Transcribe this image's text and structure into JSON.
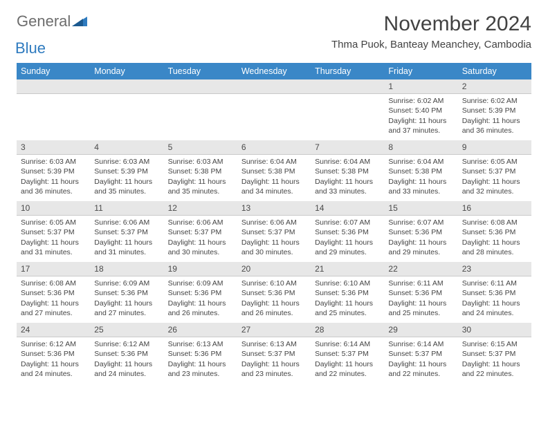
{
  "logo": {
    "text1": "General",
    "text2": "Blue",
    "icon_color": "#2f7bbf"
  },
  "header": {
    "month_title": "November 2024",
    "location": "Thma Puok, Banteay Meanchey, Cambodia"
  },
  "colors": {
    "weekday_bg": "#3a87c7",
    "weekday_fg": "#ffffff",
    "daynum_bg": "#e7e7e7",
    "text": "#444444",
    "title": "#424242"
  },
  "weekdays": [
    "Sunday",
    "Monday",
    "Tuesday",
    "Wednesday",
    "Thursday",
    "Friday",
    "Saturday"
  ],
  "weeks": [
    [
      null,
      null,
      null,
      null,
      null,
      {
        "n": "1",
        "sunrise": "Sunrise: 6:02 AM",
        "sunset": "Sunset: 5:40 PM",
        "daylight1": "Daylight: 11 hours",
        "daylight2": "and 37 minutes."
      },
      {
        "n": "2",
        "sunrise": "Sunrise: 6:02 AM",
        "sunset": "Sunset: 5:39 PM",
        "daylight1": "Daylight: 11 hours",
        "daylight2": "and 36 minutes."
      }
    ],
    [
      {
        "n": "3",
        "sunrise": "Sunrise: 6:03 AM",
        "sunset": "Sunset: 5:39 PM",
        "daylight1": "Daylight: 11 hours",
        "daylight2": "and 36 minutes."
      },
      {
        "n": "4",
        "sunrise": "Sunrise: 6:03 AM",
        "sunset": "Sunset: 5:39 PM",
        "daylight1": "Daylight: 11 hours",
        "daylight2": "and 35 minutes."
      },
      {
        "n": "5",
        "sunrise": "Sunrise: 6:03 AM",
        "sunset": "Sunset: 5:38 PM",
        "daylight1": "Daylight: 11 hours",
        "daylight2": "and 35 minutes."
      },
      {
        "n": "6",
        "sunrise": "Sunrise: 6:04 AM",
        "sunset": "Sunset: 5:38 PM",
        "daylight1": "Daylight: 11 hours",
        "daylight2": "and 34 minutes."
      },
      {
        "n": "7",
        "sunrise": "Sunrise: 6:04 AM",
        "sunset": "Sunset: 5:38 PM",
        "daylight1": "Daylight: 11 hours",
        "daylight2": "and 33 minutes."
      },
      {
        "n": "8",
        "sunrise": "Sunrise: 6:04 AM",
        "sunset": "Sunset: 5:38 PM",
        "daylight1": "Daylight: 11 hours",
        "daylight2": "and 33 minutes."
      },
      {
        "n": "9",
        "sunrise": "Sunrise: 6:05 AM",
        "sunset": "Sunset: 5:37 PM",
        "daylight1": "Daylight: 11 hours",
        "daylight2": "and 32 minutes."
      }
    ],
    [
      {
        "n": "10",
        "sunrise": "Sunrise: 6:05 AM",
        "sunset": "Sunset: 5:37 PM",
        "daylight1": "Daylight: 11 hours",
        "daylight2": "and 31 minutes."
      },
      {
        "n": "11",
        "sunrise": "Sunrise: 6:06 AM",
        "sunset": "Sunset: 5:37 PM",
        "daylight1": "Daylight: 11 hours",
        "daylight2": "and 31 minutes."
      },
      {
        "n": "12",
        "sunrise": "Sunrise: 6:06 AM",
        "sunset": "Sunset: 5:37 PM",
        "daylight1": "Daylight: 11 hours",
        "daylight2": "and 30 minutes."
      },
      {
        "n": "13",
        "sunrise": "Sunrise: 6:06 AM",
        "sunset": "Sunset: 5:37 PM",
        "daylight1": "Daylight: 11 hours",
        "daylight2": "and 30 minutes."
      },
      {
        "n": "14",
        "sunrise": "Sunrise: 6:07 AM",
        "sunset": "Sunset: 5:36 PM",
        "daylight1": "Daylight: 11 hours",
        "daylight2": "and 29 minutes."
      },
      {
        "n": "15",
        "sunrise": "Sunrise: 6:07 AM",
        "sunset": "Sunset: 5:36 PM",
        "daylight1": "Daylight: 11 hours",
        "daylight2": "and 29 minutes."
      },
      {
        "n": "16",
        "sunrise": "Sunrise: 6:08 AM",
        "sunset": "Sunset: 5:36 PM",
        "daylight1": "Daylight: 11 hours",
        "daylight2": "and 28 minutes."
      }
    ],
    [
      {
        "n": "17",
        "sunrise": "Sunrise: 6:08 AM",
        "sunset": "Sunset: 5:36 PM",
        "daylight1": "Daylight: 11 hours",
        "daylight2": "and 27 minutes."
      },
      {
        "n": "18",
        "sunrise": "Sunrise: 6:09 AM",
        "sunset": "Sunset: 5:36 PM",
        "daylight1": "Daylight: 11 hours",
        "daylight2": "and 27 minutes."
      },
      {
        "n": "19",
        "sunrise": "Sunrise: 6:09 AM",
        "sunset": "Sunset: 5:36 PM",
        "daylight1": "Daylight: 11 hours",
        "daylight2": "and 26 minutes."
      },
      {
        "n": "20",
        "sunrise": "Sunrise: 6:10 AM",
        "sunset": "Sunset: 5:36 PM",
        "daylight1": "Daylight: 11 hours",
        "daylight2": "and 26 minutes."
      },
      {
        "n": "21",
        "sunrise": "Sunrise: 6:10 AM",
        "sunset": "Sunset: 5:36 PM",
        "daylight1": "Daylight: 11 hours",
        "daylight2": "and 25 minutes."
      },
      {
        "n": "22",
        "sunrise": "Sunrise: 6:11 AM",
        "sunset": "Sunset: 5:36 PM",
        "daylight1": "Daylight: 11 hours",
        "daylight2": "and 25 minutes."
      },
      {
        "n": "23",
        "sunrise": "Sunrise: 6:11 AM",
        "sunset": "Sunset: 5:36 PM",
        "daylight1": "Daylight: 11 hours",
        "daylight2": "and 24 minutes."
      }
    ],
    [
      {
        "n": "24",
        "sunrise": "Sunrise: 6:12 AM",
        "sunset": "Sunset: 5:36 PM",
        "daylight1": "Daylight: 11 hours",
        "daylight2": "and 24 minutes."
      },
      {
        "n": "25",
        "sunrise": "Sunrise: 6:12 AM",
        "sunset": "Sunset: 5:36 PM",
        "daylight1": "Daylight: 11 hours",
        "daylight2": "and 24 minutes."
      },
      {
        "n": "26",
        "sunrise": "Sunrise: 6:13 AM",
        "sunset": "Sunset: 5:36 PM",
        "daylight1": "Daylight: 11 hours",
        "daylight2": "and 23 minutes."
      },
      {
        "n": "27",
        "sunrise": "Sunrise: 6:13 AM",
        "sunset": "Sunset: 5:37 PM",
        "daylight1": "Daylight: 11 hours",
        "daylight2": "and 23 minutes."
      },
      {
        "n": "28",
        "sunrise": "Sunrise: 6:14 AM",
        "sunset": "Sunset: 5:37 PM",
        "daylight1": "Daylight: 11 hours",
        "daylight2": "and 22 minutes."
      },
      {
        "n": "29",
        "sunrise": "Sunrise: 6:14 AM",
        "sunset": "Sunset: 5:37 PM",
        "daylight1": "Daylight: 11 hours",
        "daylight2": "and 22 minutes."
      },
      {
        "n": "30",
        "sunrise": "Sunrise: 6:15 AM",
        "sunset": "Sunset: 5:37 PM",
        "daylight1": "Daylight: 11 hours",
        "daylight2": "and 22 minutes."
      }
    ]
  ]
}
